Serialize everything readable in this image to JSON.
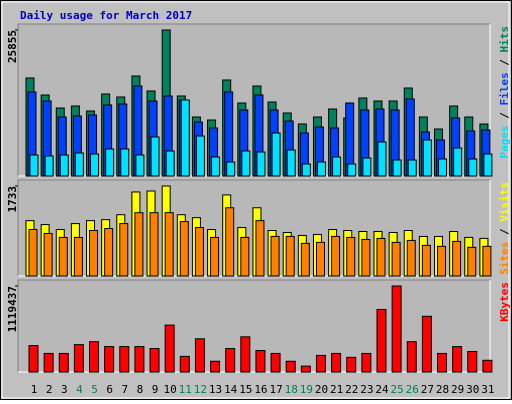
{
  "chart_data": [
    {
      "type": "bar",
      "title": "Daily usage for March 2017",
      "categories": [
        "1",
        "2",
        "3",
        "4",
        "5",
        "6",
        "7",
        "8",
        "9",
        "10",
        "11",
        "12",
        "13",
        "14",
        "15",
        "16",
        "17",
        "18",
        "19",
        "20",
        "21",
        "22",
        "23",
        "24",
        "25",
        "26",
        "27",
        "28",
        "29",
        "30",
        "31"
      ],
      "category_colors": [
        "#000000",
        "#000000",
        "#000000",
        "#00805c",
        "#00805c",
        "#000000",
        "#000000",
        "#000000",
        "#000000",
        "#000000",
        "#00805c",
        "#00805c",
        "#000000",
        "#000000",
        "#000000",
        "#000000",
        "#000000",
        "#00805c",
        "#00805c",
        "#000000",
        "#000000",
        "#000000",
        "#000000",
        "#000000",
        "#00805c",
        "#00805c",
        "#000000",
        "#000000",
        "#000000",
        "#000000",
        "#000000"
      ],
      "legend_separator": " / ",
      "ylim": [
        0,
        25855
      ],
      "yticks": [
        25855
      ],
      "series": [
        {
          "name": "Hits",
          "color": "#00805c",
          "values": [
            17356,
            14345,
            12042,
            12397,
            11511,
            14522,
            13990,
            17710,
            15053,
            25855,
            14168,
            10448,
            9917,
            17000,
            12928,
            15938,
            13105,
            11157,
            9209,
            10448,
            11865,
            10272,
            13813,
            13282,
            13282,
            15584,
            10448,
            8323,
            12397,
            10448,
            9209
          ]
        },
        {
          "name": "Files",
          "color": "#0040ff",
          "values": [
            14876,
            13282,
            10448,
            10625,
            10803,
            12574,
            12751,
            15938,
            13282,
            14168,
            13459,
            9563,
            8500,
            14876,
            11688,
            14345,
            11688,
            9740,
            7615,
            8677,
            8500,
            12928,
            11688,
            11865,
            11688,
            13636,
            7792,
            6375,
            10272,
            7969,
            8146
          ]
        },
        {
          "name": "Pages",
          "color": "#00e0ff",
          "values": [
            3719,
            3542,
            3719,
            4073,
            3896,
            4782,
            4782,
            3719,
            6907,
            4428,
            13459,
            7084,
            3365,
            2479,
            4428,
            4250,
            7615,
            4605,
            2125,
            2479,
            3365,
            2125,
            3188,
            6021,
            2834,
            2834,
            6376,
            3011,
            4959,
            3011,
            3896
          ]
        }
      ]
    },
    {
      "type": "bar",
      "legend_separator": " / ",
      "ylim": [
        0,
        1733
      ],
      "yticks": [
        1733
      ],
      "series": [
        {
          "name": "Visits",
          "color": "#ffff00",
          "values": [
            1066,
            990,
            895,
            1009,
            1066,
            1085,
            1180,
            1618,
            1637,
            1733,
            1180,
            1123,
            895,
            1561,
            933,
            1314,
            876,
            838,
            781,
            800,
            895,
            876,
            857,
            857,
            838,
            876,
            762,
            762,
            857,
            743,
            724
          ]
        },
        {
          "name": "Sites",
          "color": "#ff8000",
          "values": [
            895,
            819,
            743,
            743,
            876,
            914,
            1009,
            1219,
            1219,
            1219,
            1047,
            933,
            743,
            1314,
            743,
            1066,
            762,
            762,
            628,
            647,
            762,
            743,
            704,
            724,
            647,
            685,
            590,
            571,
            666,
            552,
            571
          ]
        }
      ]
    },
    {
      "type": "bar",
      "ylim": [
        0,
        1119437
      ],
      "yticks": [
        1119437
      ],
      "series": [
        {
          "name": "KBytes",
          "color": "#ff0000",
          "values": [
            343467,
            241699,
            241699,
            356188,
            394351,
            330746,
            330746,
            330746,
            305304,
            610608,
            203536,
            432514,
            139931,
            305304,
            457956,
            279862,
            241699,
            139931,
            76326,
            216257,
            241699,
            190815,
            241699,
            814144,
            1119437,
            394351,
            725097,
            241699,
            330746,
            267141,
            152652
          ]
        }
      ]
    }
  ]
}
